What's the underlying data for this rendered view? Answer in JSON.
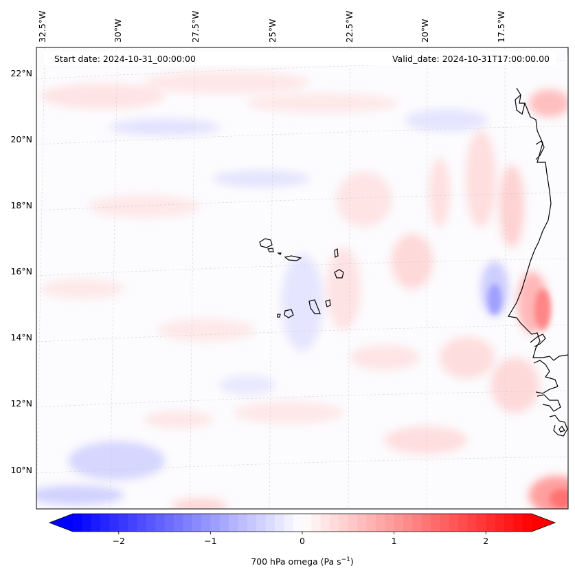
{
  "header": {
    "start_date": "Start date: 2024-10-31_00:00:00",
    "valid_date": "Valid_date: 2024-10-31T17:00:00.00"
  },
  "map": {
    "lon_labels": [
      "32.5°W",
      "30°W",
      "27.5°W",
      "25°W",
      "22.5°W",
      "20°W",
      "17.5°W"
    ],
    "lat_labels": [
      "22°N",
      "20°N",
      "18°N",
      "16°N",
      "14°N",
      "12°N",
      "10°N"
    ],
    "gridlines": true,
    "field": "700 hPa omega",
    "features": [
      "Cape Verde islands",
      "West African coastline"
    ]
  },
  "colorbar": {
    "label": "700 hPa omega (Pa s",
    "label_sup": "−1",
    "label_close": ")",
    "ticks": [
      "−2",
      "−1",
      "0",
      "1",
      "2"
    ],
    "tick_values": [
      -2,
      -1,
      0,
      1,
      2
    ],
    "range": [
      -2.5,
      2.5
    ],
    "extend": "both",
    "colormap": "bwr",
    "low_color": "#0000ff",
    "mid_color": "#ffffff",
    "high_color": "#ff0000"
  }
}
